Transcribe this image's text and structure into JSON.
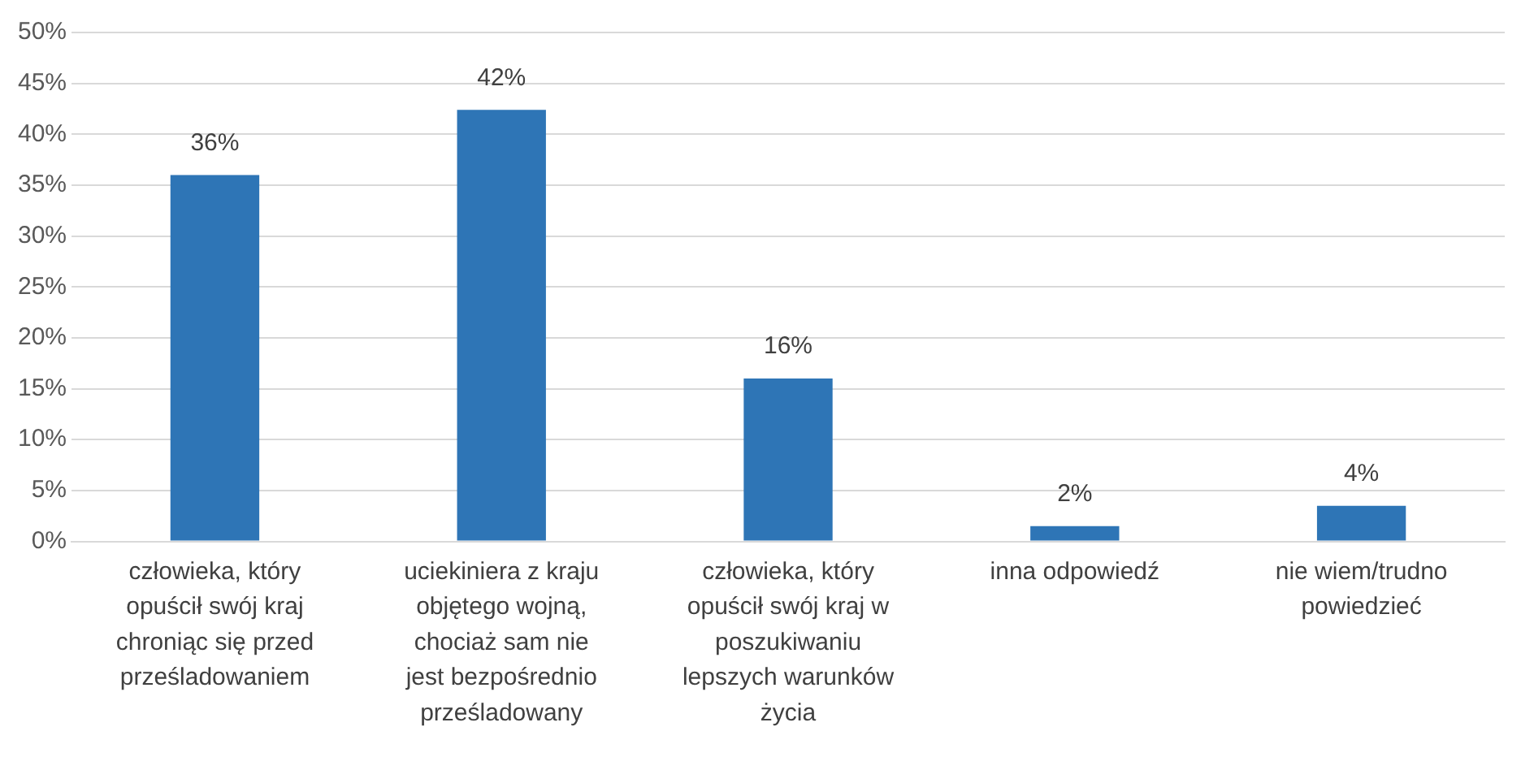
{
  "chart_data": {
    "type": "bar",
    "categories": [
      "człowieka, który opuścił swój kraj chroniąc się przed prześladowaniem",
      "uciekiniera z kraju objętego wojną, chociaż sam nie jest bezpośrednio prześladowany",
      "człowieka, który opuścił swój kraj w poszukiwaniu lepszych warunków życia",
      "inna odpowiedź",
      "nie wiem/trudno powiedzieć"
    ],
    "values": [
      36,
      42.4,
      16,
      1.5,
      3.5
    ],
    "value_labels": [
      "36%",
      "42%",
      "16%",
      "2%",
      "4%"
    ],
    "color": "#2e75b6",
    "ylim": [
      0,
      50
    ],
    "yticks": [
      {
        "value": 0,
        "label": "0%"
      },
      {
        "value": 5,
        "label": "5%"
      },
      {
        "value": 10,
        "label": "10%"
      },
      {
        "value": 15,
        "label": "15%"
      },
      {
        "value": 20,
        "label": "20%"
      },
      {
        "value": 25,
        "label": "25%"
      },
      {
        "value": 30,
        "label": "30%"
      },
      {
        "value": 35,
        "label": "35%"
      },
      {
        "value": 40,
        "label": "40%"
      },
      {
        "value": 45,
        "label": "45%"
      },
      {
        "value": 50,
        "label": "50%"
      }
    ],
    "grid": "y",
    "legend": false
  }
}
